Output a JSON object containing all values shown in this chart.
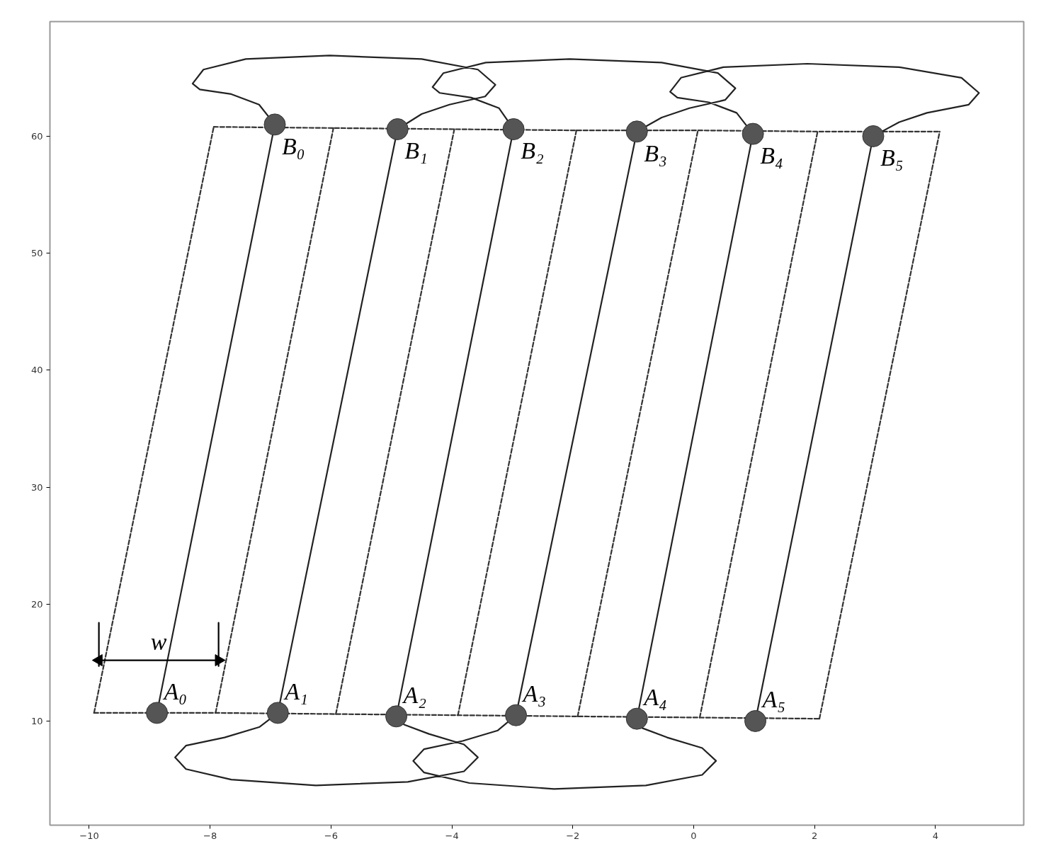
{
  "chart_data": {
    "type": "line",
    "xlim": [
      -10.65,
      5.46
    ],
    "ylim": [
      1.1,
      69.8
    ],
    "xticks": [
      {
        "value": -10,
        "label": "−10"
      },
      {
        "value": -8,
        "label": "−8"
      },
      {
        "value": -6,
        "label": "−6"
      },
      {
        "value": -4,
        "label": "−4"
      },
      {
        "value": -2,
        "label": "−2"
      },
      0,
      2,
      4
    ],
    "yticks": [
      10,
      20,
      30,
      40,
      50,
      60
    ],
    "grid": false,
    "series": [
      {
        "color": "#333333",
        "line_style": "dashed",
        "marker": "none",
        "x": [
          -9.92,
          -7.91,
          -5.92,
          -3.9,
          -1.92,
          0.1,
          2.08
        ],
        "values": [
          10.7,
          10.7,
          10.6,
          10.5,
          10.4,
          10.3,
          10.2
        ]
      },
      {
        "color": "#333333",
        "line_style": "dashed",
        "marker": "none",
        "x": [
          -7.94,
          -5.96,
          -3.96,
          -1.94,
          0.07,
          2.05,
          4.07
        ],
        "values": [
          60.8,
          60.7,
          60.6,
          60.5,
          60.5,
          60.4,
          60.4
        ]
      },
      {
        "color": "#333333",
        "line_style": "dashed",
        "marker": "none",
        "x": [
          -9.92,
          -7.94,
          null,
          -7.91,
          -5.96,
          null,
          -5.92,
          -3.96,
          null,
          -3.9,
          -1.94,
          null,
          -1.92,
          0.07,
          null,
          0.1,
          2.05,
          null,
          2.08,
          4.07
        ],
        "values": [
          10.7,
          60.8,
          null,
          10.7,
          60.7,
          null,
          10.6,
          60.6,
          null,
          10.5,
          60.5,
          null,
          10.4,
          60.5,
          null,
          10.3,
          60.4,
          null,
          10.2,
          60.4
        ]
      },
      {
        "color": "#222222",
        "line_style": "solid",
        "marker": "none",
        "x": [
          -8.88,
          -6.93,
          -7.19,
          -7.65,
          -8.17,
          -8.29,
          -8.11,
          -7.41,
          -6.02,
          -4.5,
          -3.57,
          -3.28,
          -3.45,
          -4.04,
          -4.5,
          -4.9,
          -6.88,
          -7.18,
          -7.76,
          -8.4,
          -8.58,
          -8.4,
          -7.65,
          -6.25,
          -4.73,
          -3.8,
          -3.57,
          -3.8,
          -4.38,
          -4.79,
          -4.92,
          -2.98,
          -3.22,
          -3.68,
          -4.2,
          -4.32,
          -4.14,
          -3.44,
          -2.05,
          -0.53,
          0.4,
          0.69,
          0.52,
          -0.07,
          -0.53,
          -0.94,
          -2.94,
          -3.24,
          -3.82,
          -4.46,
          -4.64,
          -4.46,
          -3.71,
          -2.31,
          -0.79,
          0.14,
          0.37,
          0.14,
          -0.44,
          -0.85,
          -0.94,
          0.98,
          0.71,
          0.25,
          -0.27,
          -0.39,
          -0.21,
          0.49,
          1.88,
          3.4,
          4.43,
          4.72,
          4.55,
          3.86,
          3.4,
          2.97,
          1.02
        ],
        "values": [
          10.7,
          61.0,
          62.7,
          63.6,
          64.0,
          64.5,
          65.7,
          66.6,
          66.9,
          66.6,
          65.7,
          64.4,
          63.4,
          62.7,
          61.9,
          60.6,
          10.7,
          9.5,
          8.6,
          7.9,
          6.9,
          5.9,
          5.0,
          4.5,
          4.8,
          5.7,
          6.9,
          8.0,
          8.9,
          9.7,
          10.4,
          60.6,
          62.4,
          63.3,
          63.7,
          64.2,
          65.4,
          66.3,
          66.6,
          66.3,
          65.4,
          64.1,
          63.1,
          62.4,
          61.6,
          60.4,
          10.5,
          9.2,
          8.3,
          7.6,
          6.6,
          5.6,
          4.7,
          4.2,
          4.5,
          5.4,
          6.6,
          7.7,
          8.6,
          9.4,
          10.2,
          60.2,
          62.0,
          62.9,
          63.3,
          63.8,
          65.0,
          65.9,
          66.2,
          65.9,
          65.0,
          63.7,
          62.7,
          62.0,
          61.2,
          60.0,
          10.0
        ]
      },
      {
        "name": "w",
        "color": "#000000",
        "line_style": "solid",
        "marker": "triangle",
        "x": [
          -9.84,
          -7.86
        ],
        "values": [
          15.2,
          15.2
        ]
      },
      {
        "color": "#000000",
        "line_style": "solid",
        "marker": "none",
        "x": [
          -9.84,
          -9.84,
          null,
          -7.86,
          -7.86
        ],
        "values": [
          18.4,
          14.7,
          null,
          18.4,
          14.7
        ]
      },
      {
        "type": "scatter",
        "color": "#555555",
        "marker": "circle",
        "x": [
          -6.93,
          -4.9,
          -2.98,
          -0.94,
          0.98,
          2.97,
          -8.88,
          -6.88,
          -4.92,
          -2.94,
          -0.94,
          1.02
        ],
        "values": [
          61.0,
          60.6,
          60.6,
          60.4,
          60.2,
          60.0,
          10.7,
          10.7,
          10.4,
          10.5,
          10.2,
          10.0
        ]
      }
    ],
    "annotations": [
      {
        "text": "B₀",
        "x": -6.93,
        "y": 61.0
      },
      {
        "text": "B₁",
        "x": -4.9,
        "y": 60.6
      },
      {
        "text": "B₂",
        "x": -2.98,
        "y": 60.6
      },
      {
        "text": "B₃",
        "x": -0.94,
        "y": 60.4
      },
      {
        "text": "B₄",
        "x": 0.98,
        "y": 60.2
      },
      {
        "text": "B₅",
        "x": 2.97,
        "y": 60.0
      },
      {
        "text": "A₀",
        "x": -8.88,
        "y": 10.7
      },
      {
        "text": "A₁",
        "x": -6.88,
        "y": 10.7
      },
      {
        "text": "A₂",
        "x": -4.92,
        "y": 10.4
      },
      {
        "text": "A₃",
        "x": -2.94,
        "y": 10.5
      },
      {
        "text": "A₄",
        "x": -0.94,
        "y": 10.2
      },
      {
        "text": "A₅",
        "x": 1.02,
        "y": 10.0
      }
    ]
  }
}
